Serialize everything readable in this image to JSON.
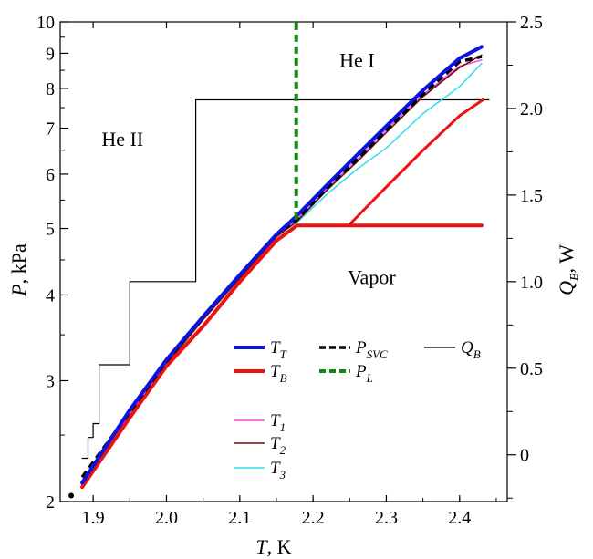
{
  "chart_data": {
    "type": "line",
    "x_axis": {
      "label_main": "T",
      "label_unit": ", K",
      "range": [
        1.855,
        2.465
      ],
      "ticks": [
        1.9,
        2.0,
        2.1,
        2.2,
        2.3,
        2.4
      ],
      "tick_labels": [
        "1.9",
        "2.0",
        "2.1",
        "2.2",
        "2.3",
        "2.4"
      ]
    },
    "y_axis": {
      "label_main": "P",
      "label_unit": ", kPa",
      "scale": "log",
      "range": [
        2,
        10
      ],
      "ticks": [
        2,
        3,
        4,
        5,
        6,
        7,
        8,
        9,
        10
      ],
      "tick_labels": [
        "2",
        "3",
        "4",
        "5",
        "6",
        "7",
        "8",
        "9",
        "10"
      ]
    },
    "y2_axis": {
      "label_main": "Q",
      "label_sub": "B",
      "label_unit": ", W",
      "range": [
        -0.27,
        2.5
      ],
      "ticks": [
        0,
        0.5,
        1.0,
        1.5,
        2.0,
        2.5
      ],
      "tick_labels": [
        "0",
        "0.5",
        "1.0",
        "1.5",
        "2.0",
        "2.5"
      ]
    },
    "regions": [
      {
        "label": "He I",
        "x": 2.26,
        "y": 8.6
      },
      {
        "label": "He II",
        "x": 1.94,
        "y": 6.6
      },
      {
        "label": "Vapor",
        "x": 2.28,
        "y": 4.15
      }
    ],
    "series": [
      {
        "key": "T_T",
        "name_main": "T",
        "name_sub": "T",
        "color": "#0a14e0",
        "width": 4,
        "axis": "left",
        "x": [
          1.885,
          1.95,
          2.0,
          2.05,
          2.1,
          2.15,
          2.178,
          2.22,
          2.26,
          2.3,
          2.35,
          2.4,
          2.43
        ],
        "y": [
          2.13,
          2.72,
          3.22,
          3.72,
          4.28,
          4.9,
          5.22,
          5.8,
          6.4,
          7.05,
          7.95,
          8.85,
          9.2
        ]
      },
      {
        "key": "T_B",
        "name_main": "T",
        "name_sub": "B",
        "color": "#ee1111",
        "width": 4,
        "axis": "left",
        "x": [
          1.885,
          1.95,
          2.0,
          2.05,
          2.1,
          2.15,
          2.178,
          2.25,
          2.3,
          2.35,
          2.4,
          2.43
        ],
        "y": [
          2.1,
          2.65,
          3.15,
          3.6,
          4.18,
          4.8,
          5.05,
          5.05,
          5.05,
          5.05,
          5.05,
          5.05
        ]
      },
      {
        "key": "T_B_branch",
        "name_main": "",
        "name_sub": "",
        "color": "#ee1111",
        "width": 3,
        "axis": "left",
        "x": [
          2.25,
          2.3,
          2.35,
          2.4,
          2.432
        ],
        "y": [
          5.07,
          5.75,
          6.5,
          7.3,
          7.7
        ]
      },
      {
        "key": "T_1",
        "name_main": "T",
        "name_sub": "1",
        "color": "#ee44ee",
        "width": 1.5,
        "axis": "left",
        "x": [
          1.9,
          1.95,
          2.0,
          2.05,
          2.1,
          2.15,
          2.178,
          2.22,
          2.26,
          2.3,
          2.35,
          2.4,
          2.43
        ],
        "y": [
          2.27,
          2.68,
          3.19,
          3.7,
          4.24,
          4.87,
          5.15,
          5.73,
          6.3,
          6.96,
          7.83,
          8.62,
          8.8
        ]
      },
      {
        "key": "T_2",
        "name_main": "T",
        "name_sub": "2",
        "color": "#6b0f0f",
        "width": 1.5,
        "axis": "left",
        "x": [
          1.9,
          1.95,
          2.0,
          2.05,
          2.1,
          2.15,
          2.178,
          2.22,
          2.26,
          2.3,
          2.35,
          2.4,
          2.43
        ],
        "y": [
          2.25,
          2.66,
          3.17,
          3.68,
          4.23,
          4.86,
          5.12,
          5.7,
          6.25,
          6.9,
          7.78,
          8.58,
          8.95
        ]
      },
      {
        "key": "T_3",
        "name_main": "T",
        "name_sub": "3",
        "color": "#33dde8",
        "width": 1.5,
        "axis": "left",
        "x": [
          1.9,
          1.95,
          2.0,
          2.05,
          2.1,
          2.15,
          2.178,
          2.22,
          2.26,
          2.3,
          2.35,
          2.4,
          2.43
        ],
        "y": [
          2.26,
          2.7,
          3.2,
          3.73,
          4.29,
          4.88,
          5.1,
          5.62,
          6.1,
          6.55,
          7.35,
          8.05,
          8.7
        ]
      },
      {
        "key": "P_SVC",
        "name_main": "P",
        "name_sub": "SVC",
        "color": "#000000",
        "width": 3.5,
        "dash": "8,5",
        "axis": "left",
        "x": [
          1.885,
          1.95,
          2.0,
          2.05,
          2.1,
          2.15,
          2.178,
          2.22,
          2.26,
          2.3,
          2.35,
          2.4,
          2.43
        ],
        "y": [
          2.17,
          2.7,
          3.2,
          3.72,
          4.28,
          4.9,
          5.15,
          5.74,
          6.3,
          6.95,
          7.85,
          8.75,
          8.9
        ]
      },
      {
        "key": "P_L",
        "name_main": "P",
        "name_sub": "L",
        "color": "#118811",
        "width": 4,
        "dash": "8,5",
        "axis": "left",
        "x": [
          2.177,
          2.177
        ],
        "y": [
          5.15,
          10
        ]
      },
      {
        "key": "Q_B",
        "name_main": "Q",
        "name_sub": "B",
        "color": "#000000",
        "width": 1.2,
        "step": true,
        "axis": "right",
        "x": [
          1.885,
          1.893,
          1.9,
          1.908,
          1.91,
          1.92,
          1.94,
          1.95,
          1.97,
          2.0,
          2.038,
          2.04,
          2.1,
          2.2,
          2.3,
          2.44
        ],
        "y": [
          -0.02,
          0.1,
          0.18,
          0.52,
          0.52,
          0.52,
          0.52,
          1.0,
          1.0,
          1.0,
          1.0,
          2.05,
          2.05,
          2.05,
          2.05,
          2.05
        ]
      }
    ],
    "legend": [
      "T_T",
      "P_SVC",
      "Q_B",
      "T_B",
      "P_L",
      "T_1",
      "T_2",
      "T_3"
    ]
  }
}
